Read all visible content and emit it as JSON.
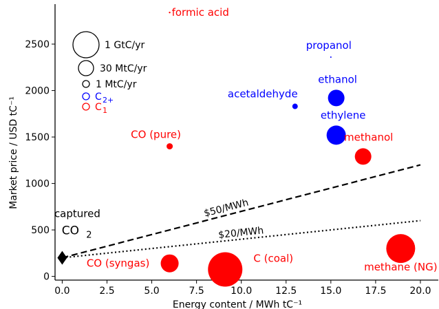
{
  "chart_data": {
    "type": "scatter",
    "title": "",
    "xlabel": "Energy content / MWh tC⁻¹",
    "ylabel": "Market price / USD tC⁻¹",
    "xlim": [
      -0.4,
      21.0
    ],
    "ylim": [
      -40,
      2930
    ],
    "grid": false,
    "x_ticks": [
      0.0,
      2.5,
      5.0,
      7.5,
      10.0,
      12.5,
      15.0,
      17.5,
      20.0
    ],
    "x_tick_labels": [
      "0.0",
      "2.5",
      "5.0",
      "7.5",
      "10.0",
      "12.5",
      "15.0",
      "17.5",
      "20.0"
    ],
    "y_ticks": [
      0,
      500,
      1000,
      1500,
      2000,
      2500
    ],
    "y_tick_labels": [
      "0",
      "500",
      "1000",
      "1500",
      "2000",
      "2500"
    ],
    "colors": {
      "C1": "#ff0000",
      "C2plus": "#0000ff",
      "neutral": "#000000"
    },
    "points": [
      {
        "label": "formic acid",
        "x": 6.0,
        "y": 2840,
        "size_r": 1.2,
        "group": "C1"
      },
      {
        "label": "CO (pure)",
        "x": 6.0,
        "y": 1400,
        "size_r": 4.5,
        "group": "C1"
      },
      {
        "label": "methanol",
        "x": 16.8,
        "y": 1290,
        "size_r": 12,
        "group": "C1"
      },
      {
        "label": "CO (syngas)",
        "x": 6.0,
        "y": 140,
        "size_r": 13,
        "group": "C1"
      },
      {
        "label": "C (coal)",
        "x": 9.1,
        "y": 75,
        "size_r": 25,
        "group": "C1"
      },
      {
        "label": "methane (NG)",
        "x": 18.9,
        "y": 300,
        "size_r": 21,
        "group": "C1"
      },
      {
        "label": "propanol",
        "x": 15.0,
        "y": 2360,
        "size_r": 1.0,
        "group": "C2plus"
      },
      {
        "label": "acetaldehyde",
        "x": 13.0,
        "y": 1830,
        "size_r": 4,
        "group": "C2plus"
      },
      {
        "label": "ethanol",
        "x": 15.3,
        "y": 1920,
        "size_r": 12,
        "group": "C2plus"
      },
      {
        "label": "ethylene",
        "x": 15.3,
        "y": 1520,
        "size_r": 14,
        "group": "C2plus"
      }
    ],
    "captured": {
      "label_line1": "captured",
      "label_line2": "CO",
      "label_sub": "2",
      "x": 0,
      "y": 200
    },
    "lines": [
      {
        "label": "$50/MWh",
        "x": [
          0,
          20
        ],
        "y": [
          200,
          1200
        ],
        "style": "dashed"
      },
      {
        "label": "$20/MWh",
        "x": [
          0,
          20
        ],
        "y": [
          200,
          600
        ],
        "style": "dotted"
      }
    ],
    "size_legend": [
      {
        "label": "1 GtC/yr",
        "size_r": 19
      },
      {
        "label": "30 MtC/yr",
        "size_r": 11
      },
      {
        "label": "1 MtC/yr",
        "size_r": 5
      }
    ],
    "color_legend": [
      {
        "label": "C",
        "sub": "2+",
        "group": "C2plus"
      },
      {
        "label": "C",
        "sub": "1",
        "group": "C1"
      }
    ]
  }
}
